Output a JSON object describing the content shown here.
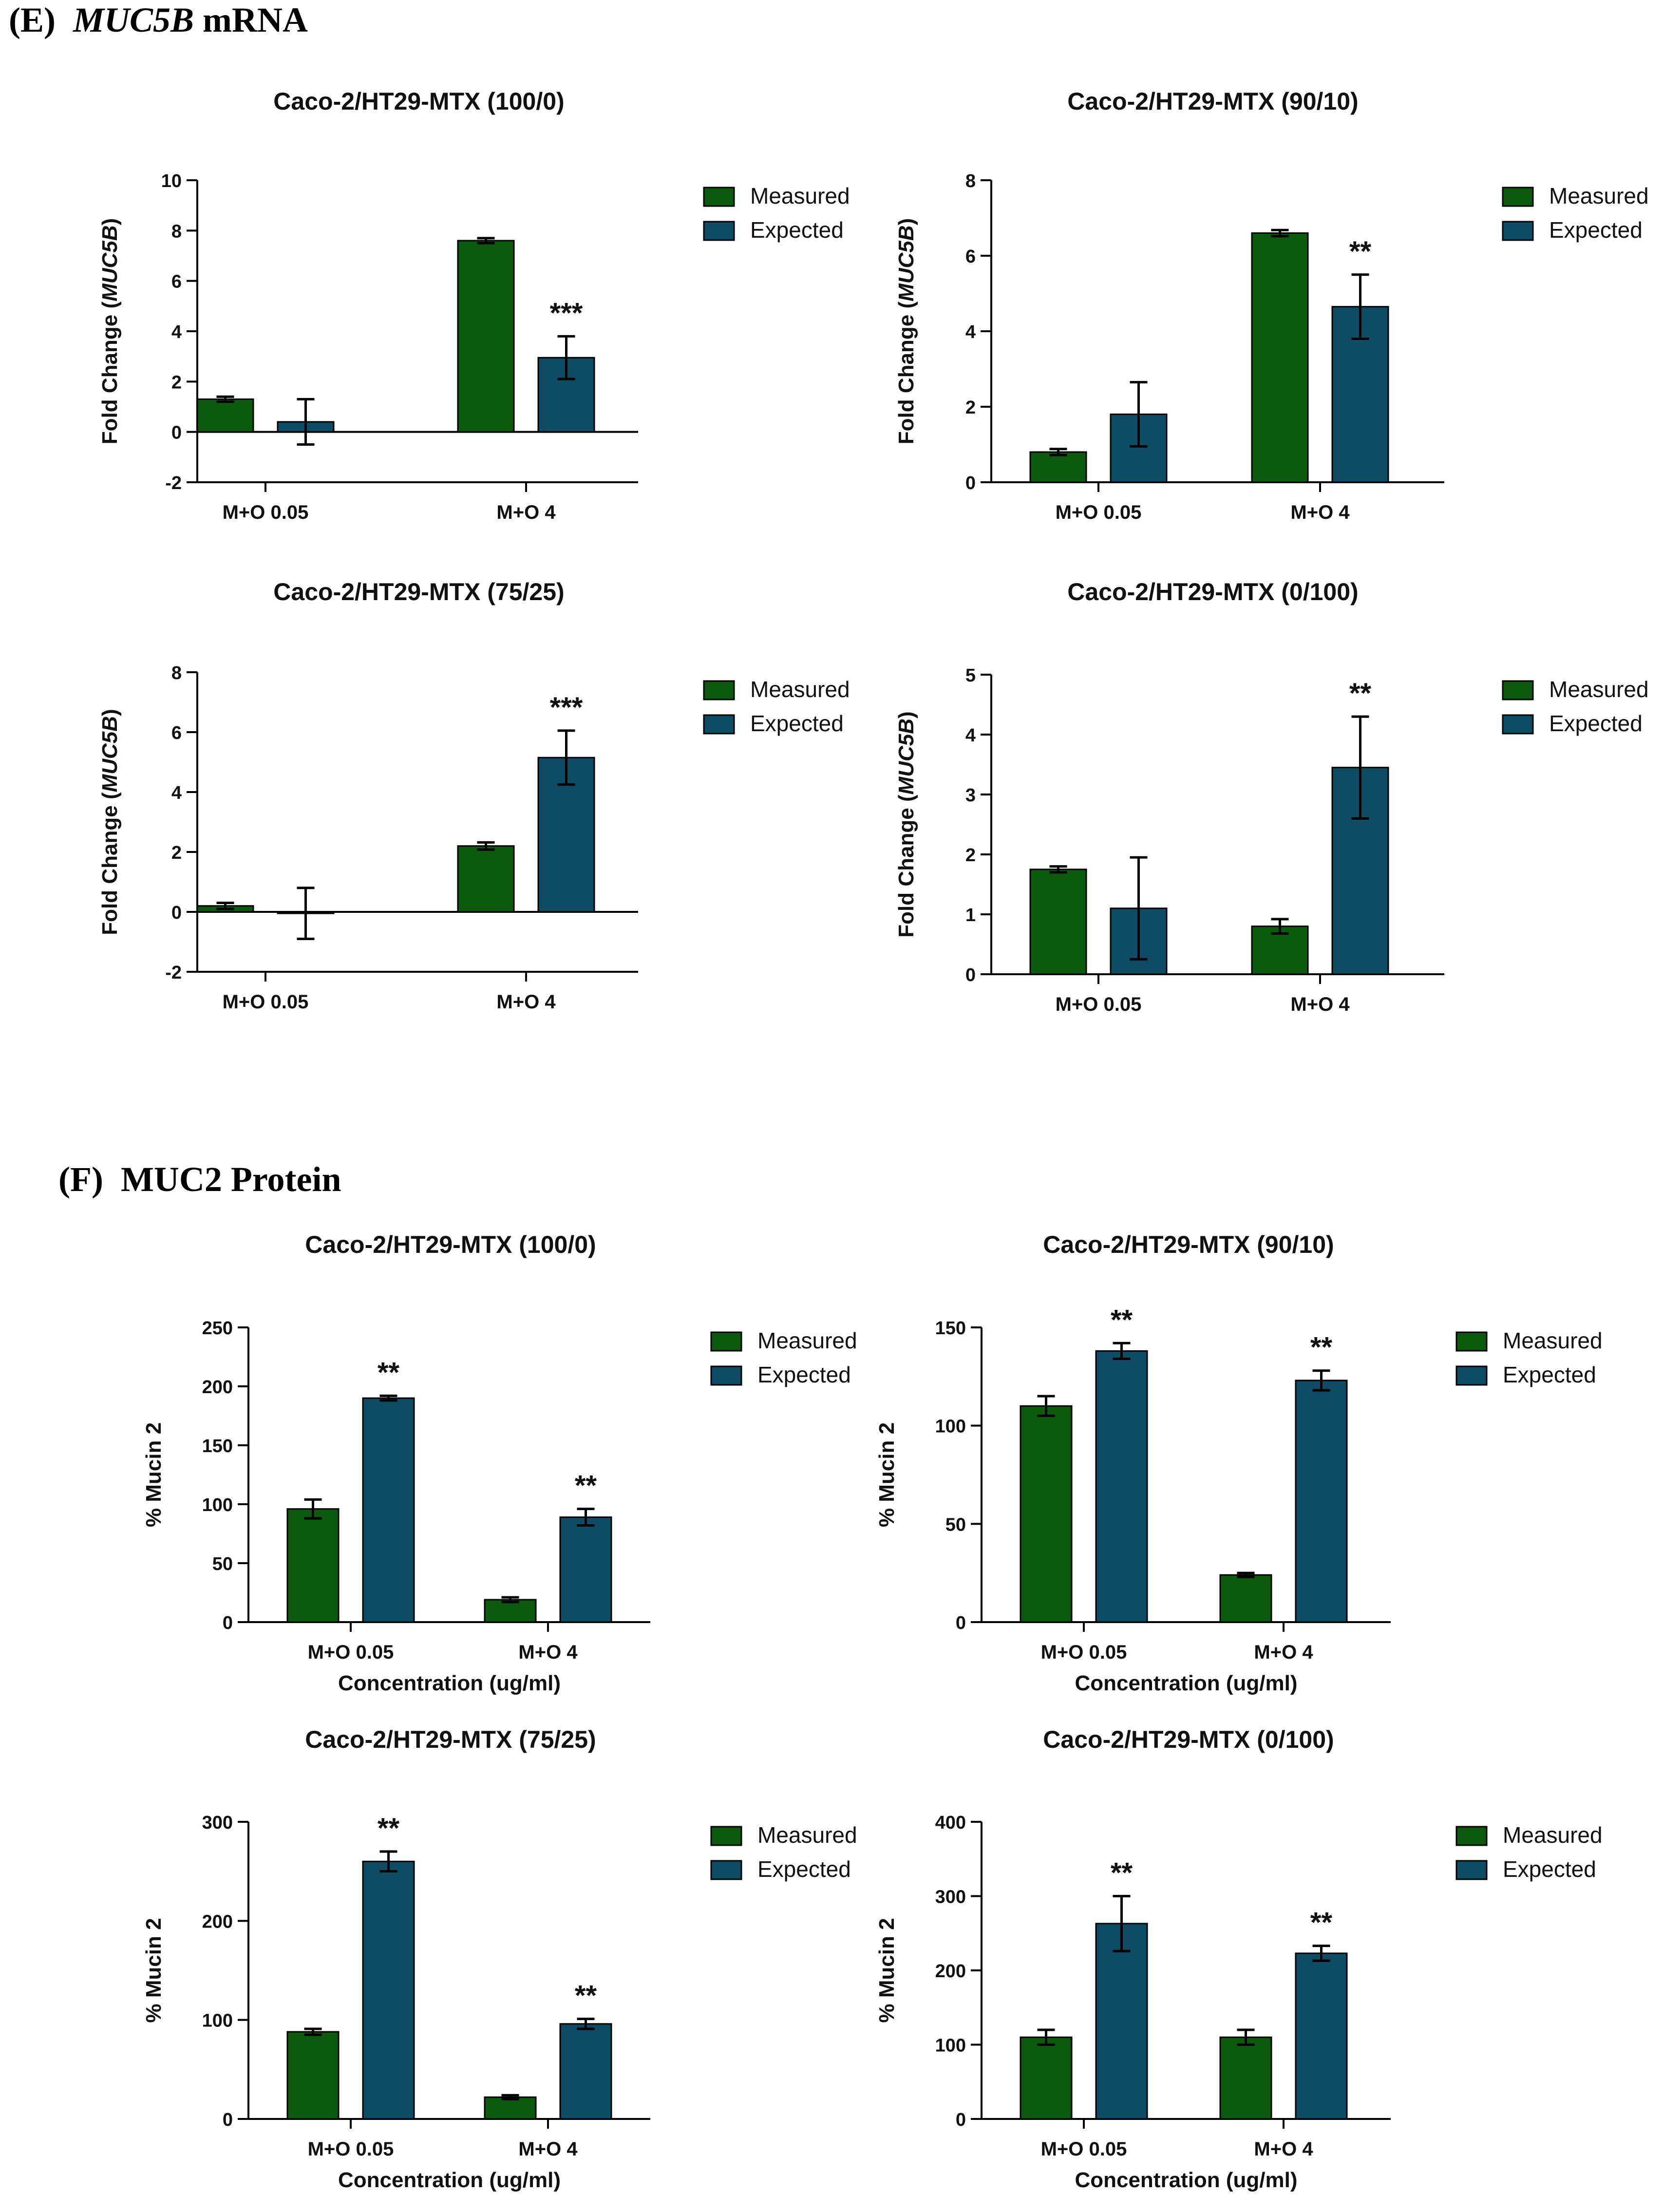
{
  "colors": {
    "measured": "#0b5a0d",
    "expected": "#0d4c64",
    "axis": "#000000"
  },
  "sections": [
    {
      "letter": "(E)",
      "gene": "MUC5B",
      "suffix": "mRNA"
    },
    {
      "letter": "(F)",
      "gene": "",
      "suffix": "MUC2 Protein"
    }
  ],
  "chart_data": [
    {
      "type": "bar",
      "title": "Caco-2/HT29-MTX (100/0)",
      "categories": [
        "M+O 0.05",
        "M+O 4"
      ],
      "ylabel_prefix": "Fold Change (",
      "ylabel_gene": "MUC5B",
      "ylabel_suffix": ")",
      "xlabel": "",
      "ylim": [
        -2,
        10
      ],
      "yticks": [
        -2,
        0,
        2,
        4,
        6,
        8,
        10
      ],
      "series": [
        {
          "name": "Measured",
          "values": [
            1.3,
            7.6
          ],
          "errors": [
            0.1,
            0.1
          ]
        },
        {
          "name": "Expected",
          "values": [
            0.4,
            2.95
          ],
          "errors": [
            0.9,
            0.85
          ]
        }
      ],
      "annotations": [
        {
          "category": 1,
          "series": 1,
          "text": "***"
        }
      ],
      "legend": [
        "Measured",
        "Expected"
      ]
    },
    {
      "type": "bar",
      "title": "Caco-2/HT29-MTX (90/10)",
      "categories": [
        "M+O 0.05",
        "M+O 4"
      ],
      "ylabel_prefix": "Fold Change (",
      "ylabel_gene": "MUC5B",
      "ylabel_suffix": ")",
      "xlabel": "",
      "ylim": [
        0,
        8
      ],
      "yticks": [
        0,
        2,
        4,
        6,
        8
      ],
      "series": [
        {
          "name": "Measured",
          "values": [
            0.8,
            6.6
          ],
          "errors": [
            0.08,
            0.08
          ]
        },
        {
          "name": "Expected",
          "values": [
            1.8,
            4.65
          ],
          "errors": [
            0.85,
            0.85
          ]
        }
      ],
      "annotations": [
        {
          "category": 1,
          "series": 1,
          "text": "**"
        }
      ],
      "legend": [
        "Measured",
        "Expected"
      ]
    },
    {
      "type": "bar",
      "title": "Caco-2/HT29-MTX (75/25)",
      "categories": [
        "M+O 0.05",
        "M+O 4"
      ],
      "ylabel_prefix": "Fold Change (",
      "ylabel_gene": "MUC5B",
      "ylabel_suffix": ")",
      "xlabel": "",
      "ylim": [
        -2,
        8
      ],
      "yticks": [
        -2,
        0,
        2,
        4,
        6,
        8
      ],
      "series": [
        {
          "name": "Measured",
          "values": [
            0.2,
            2.2
          ],
          "errors": [
            0.1,
            0.12
          ]
        },
        {
          "name": "Expected",
          "values": [
            -0.05,
            5.15
          ],
          "errors": [
            0.85,
            0.9
          ]
        }
      ],
      "annotations": [
        {
          "category": 1,
          "series": 1,
          "text": "***"
        }
      ],
      "legend": [
        "Measured",
        "Expected"
      ]
    },
    {
      "type": "bar",
      "title": "Caco-2/HT29-MTX (0/100)",
      "categories": [
        "M+O 0.05",
        "M+O 4"
      ],
      "ylabel_prefix": "Fold Change (",
      "ylabel_gene": "MUC5B",
      "ylabel_suffix": ")",
      "xlabel": "",
      "ylim": [
        0,
        5
      ],
      "yticks": [
        0,
        1,
        2,
        3,
        4,
        5
      ],
      "series": [
        {
          "name": "Measured",
          "values": [
            1.75,
            0.8
          ],
          "errors": [
            0.05,
            0.12
          ]
        },
        {
          "name": "Expected",
          "values": [
            1.1,
            3.45
          ],
          "errors": [
            0.85,
            0.85
          ]
        }
      ],
      "annotations": [
        {
          "category": 1,
          "series": 1,
          "text": "**"
        }
      ],
      "legend": [
        "Measured",
        "Expected"
      ]
    },
    {
      "type": "bar",
      "title": "Caco-2/HT29-MTX (100/0)",
      "categories": [
        "M+O 0.05",
        "M+O 4"
      ],
      "ylabel_prefix": "% Mucin 2",
      "ylabel_gene": "",
      "ylabel_suffix": "",
      "xlabel": "Concentration (ug/ml)",
      "ylim": [
        0,
        250
      ],
      "yticks": [
        0,
        50,
        100,
        150,
        200,
        250
      ],
      "series": [
        {
          "name": "Measured",
          "values": [
            96,
            19
          ],
          "errors": [
            8,
            2
          ]
        },
        {
          "name": "Expected",
          "values": [
            190,
            89
          ],
          "errors": [
            2,
            7
          ]
        }
      ],
      "annotations": [
        {
          "category": 0,
          "series": 1,
          "text": "**"
        },
        {
          "category": 1,
          "series": 1,
          "text": "**"
        }
      ],
      "legend": [
        "Measured",
        "Expected"
      ]
    },
    {
      "type": "bar",
      "title": "Caco-2/HT29-MTX (90/10)",
      "categories": [
        "M+O 0.05",
        "M+O 4"
      ],
      "ylabel_prefix": "% Mucin 2",
      "ylabel_gene": "",
      "ylabel_suffix": "",
      "xlabel": "Concentration (ug/ml)",
      "ylim": [
        0,
        150
      ],
      "yticks": [
        0,
        50,
        100,
        150
      ],
      "series": [
        {
          "name": "Measured",
          "values": [
            110,
            24
          ],
          "errors": [
            5,
            1
          ]
        },
        {
          "name": "Expected",
          "values": [
            138,
            123
          ],
          "errors": [
            4,
            5
          ]
        }
      ],
      "annotations": [
        {
          "category": 0,
          "series": 1,
          "text": "**"
        },
        {
          "category": 1,
          "series": 1,
          "text": "**"
        }
      ],
      "legend": [
        "Measured",
        "Expected"
      ]
    },
    {
      "type": "bar",
      "title": "Caco-2/HT29-MTX (75/25)",
      "categories": [
        "M+O 0.05",
        "M+O 4"
      ],
      "ylabel_prefix": "% Mucin 2",
      "ylabel_gene": "",
      "ylabel_suffix": "",
      "xlabel": "Concentration (ug/ml)",
      "ylim": [
        0,
        300
      ],
      "yticks": [
        0,
        100,
        200,
        300
      ],
      "series": [
        {
          "name": "Measured",
          "values": [
            88,
            22
          ],
          "errors": [
            3,
            2
          ]
        },
        {
          "name": "Expected",
          "values": [
            260,
            96
          ],
          "errors": [
            10,
            5
          ]
        }
      ],
      "annotations": [
        {
          "category": 0,
          "series": 1,
          "text": "**"
        },
        {
          "category": 1,
          "series": 1,
          "text": "**"
        }
      ],
      "legend": [
        "Measured",
        "Expected"
      ]
    },
    {
      "type": "bar",
      "title": "Caco-2/HT29-MTX (0/100)",
      "categories": [
        "M+O 0.05",
        "M+O 4"
      ],
      "ylabel_prefix": "% Mucin 2",
      "ylabel_gene": "",
      "ylabel_suffix": "",
      "xlabel": "Concentration (ug/ml)",
      "ylim": [
        0,
        400
      ],
      "yticks": [
        0,
        100,
        200,
        300,
        400
      ],
      "series": [
        {
          "name": "Measured",
          "values": [
            110,
            110
          ],
          "errors": [
            10,
            10
          ]
        },
        {
          "name": "Expected",
          "values": [
            263,
            223
          ],
          "errors": [
            37,
            10
          ]
        }
      ],
      "annotations": [
        {
          "category": 0,
          "series": 1,
          "text": "**"
        },
        {
          "category": 1,
          "series": 1,
          "text": "**"
        }
      ],
      "legend": [
        "Measured",
        "Expected"
      ]
    }
  ]
}
